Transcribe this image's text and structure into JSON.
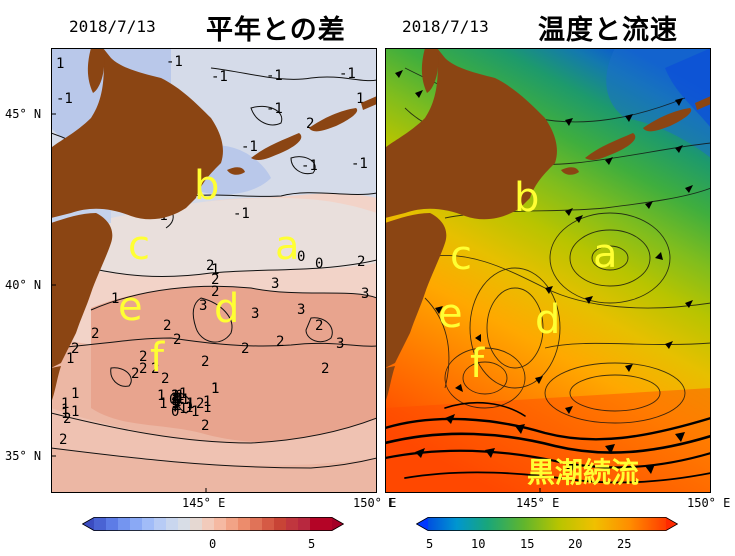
{
  "panels": [
    {
      "date": "2018/7/13",
      "title": "平年との差",
      "lat_labels": [
        "45° N",
        "40° N",
        "35° N"
      ],
      "lon_labels": [
        "145° E",
        "150° E"
      ],
      "region_labels": [
        "a",
        "b",
        "c",
        "d",
        "e",
        "f"
      ],
      "colorbar": {
        "ticks": [
          "0",
          "5"
        ],
        "scheme": "blue-white-red anomaly"
      }
    },
    {
      "date": "2018/7/13",
      "title": "温度と流速",
      "lat_labels": [
        "E"
      ],
      "lon_labels": [
        "145° E",
        "150° E"
      ],
      "region_labels": [
        "a",
        "b",
        "c",
        "d",
        "e",
        "f"
      ],
      "current_label": "黒潮続流",
      "colorbar": {
        "ticks": [
          "5",
          "10",
          "15",
          "20",
          "25"
        ],
        "scheme": "rainbow temperature"
      }
    }
  ],
  "colors": {
    "land": "#8b4513",
    "label": "#ffff33"
  }
}
